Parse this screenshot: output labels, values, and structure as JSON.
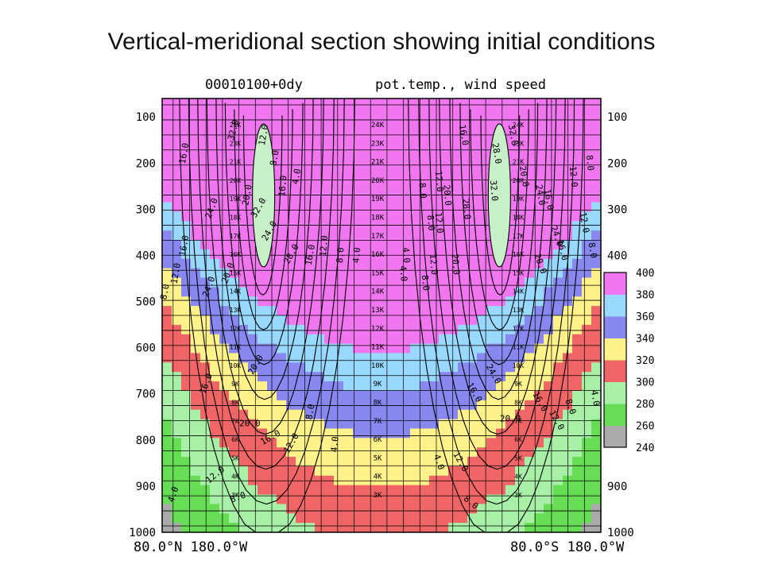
{
  "slide": {
    "title": "Vertical-meridional section showing initial conditions"
  },
  "chart_data": {
    "type": "heatmap",
    "header_left": "00010100+0dy",
    "header_right": "pot.temp., wind speed",
    "pressure_axis": {
      "ticks": [
        100,
        200,
        300,
        400,
        500,
        600,
        700,
        800,
        900,
        1000
      ],
      "tick_labels": [
        "100",
        "200",
        "300",
        "400",
        "500",
        "600",
        "700",
        "800",
        "900",
        "1000"
      ],
      "range": [
        60,
        1000
      ]
    },
    "x_axis": {
      "left_label": "80.0°N 180.0°W",
      "right_label": "80.0°S 180.0°W",
      "range": [
        80,
        -80
      ]
    },
    "colorbar": {
      "min": 240,
      "max": 400,
      "tick_labels": [
        "400",
        "380",
        "360",
        "340",
        "320",
        "300",
        "280",
        "260",
        "240"
      ],
      "colors": [
        "#aaaaaa",
        "#66dd55",
        "#a8f0a8",
        "#f06666",
        "#fff28a",
        "#8888f0",
        "#99d8ff",
        "#f077f0"
      ]
    },
    "theta_field": {
      "levels": [
        240,
        260,
        280,
        300,
        320,
        340,
        360,
        380,
        400
      ],
      "surface_pole": 240,
      "surface_equator": 305,
      "lapse": 150
    },
    "jets": [
      {
        "lat": 43,
        "p": 230,
        "max": 32
      },
      {
        "lat": -43,
        "p": 230,
        "max": 32
      }
    ],
    "wind_contour_levels": [
      4,
      8,
      12,
      16,
      20,
      24,
      28,
      32
    ],
    "wind_labels": [
      {
        "t": "32.0",
        "lat": 53,
        "p": 130,
        "r": -75
      },
      {
        "t": "16.0",
        "lat": 71,
        "p": 180,
        "r": -80
      },
      {
        "t": "12.0",
        "lat": 42,
        "p": 140,
        "r": -80
      },
      {
        "t": "8.0",
        "lat": 38,
        "p": 190,
        "r": -80
      },
      {
        "t": "4.0",
        "lat": 30,
        "p": 230,
        "r": -80
      },
      {
        "t": "20.0",
        "lat": 48,
        "p": 270,
        "r": -80
      },
      {
        "t": "16.0",
        "lat": 35,
        "p": 250,
        "r": -85
      },
      {
        "t": "24.0",
        "lat": 61,
        "p": 300,
        "r": -70
      },
      {
        "t": "32.0",
        "lat": 44,
        "p": 300,
        "r": -60
      },
      {
        "t": "24.0",
        "lat": 40,
        "p": 350,
        "r": -60
      },
      {
        "t": "28.0",
        "lat": 32,
        "p": 400,
        "r": -60
      },
      {
        "t": "16.0",
        "lat": 25,
        "p": 400,
        "r": -80
      },
      {
        "t": "12.0",
        "lat": 20,
        "p": 380,
        "r": -85
      },
      {
        "t": "8.0",
        "lat": 14,
        "p": 400,
        "r": -85
      },
      {
        "t": "4.0",
        "lat": 8,
        "p": 400,
        "r": -85
      },
      {
        "t": "20.0",
        "lat": 55,
        "p": 440,
        "r": -70
      },
      {
        "t": "24.0",
        "lat": 62,
        "p": 470,
        "r": -70
      },
      {
        "t": "16.0",
        "lat": 71,
        "p": 380,
        "r": -80
      },
      {
        "t": "12.0",
        "lat": 74,
        "p": 440,
        "r": -80
      },
      {
        "t": "8.0",
        "lat": 78,
        "p": 480,
        "r": -80
      },
      {
        "t": "20.0",
        "lat": 45,
        "p": 640,
        "r": -60
      },
      {
        "t": "16.0",
        "lat": 63,
        "p": 680,
        "r": -70
      },
      {
        "t": "20.0",
        "lat": 48,
        "p": 770,
        "r": 0
      },
      {
        "t": "16.0",
        "lat": 40,
        "p": 800,
        "r": -30
      },
      {
        "t": "12.0",
        "lat": 32,
        "p": 810,
        "r": -60
      },
      {
        "t": "8.0",
        "lat": 25,
        "p": 740,
        "r": -80
      },
      {
        "t": "4.0",
        "lat": 16,
        "p": 810,
        "r": -85
      },
      {
        "t": "12.0",
        "lat": 60,
        "p": 880,
        "r": -40
      },
      {
        "t": "8.0",
        "lat": 52,
        "p": 930,
        "r": -20
      },
      {
        "t": "4.0",
        "lat": 75,
        "p": 920,
        "r": -70
      },
      {
        "t": "4.0",
        "lat": -8,
        "p": 400,
        "r": 85
      },
      {
        "t": "8.0",
        "lat": -14,
        "p": 260,
        "r": 85
      },
      {
        "t": "12.0",
        "lat": -20,
        "p": 240,
        "r": 85
      },
      {
        "t": "20.0",
        "lat": -23,
        "p": 270,
        "r": 85
      },
      {
        "t": "28.0",
        "lat": -30,
        "p": 300,
        "r": 85
      },
      {
        "t": "32.0",
        "lat": -40,
        "p": 260,
        "r": 85
      },
      {
        "t": "28.0",
        "lat": -41,
        "p": 180,
        "r": 80
      },
      {
        "t": "32.0",
        "lat": -47,
        "p": 140,
        "r": 80
      },
      {
        "t": "16.0",
        "lat": -29,
        "p": 140,
        "r": 80
      },
      {
        "t": "12.0",
        "lat": -20,
        "p": 330,
        "r": 85
      },
      {
        "t": "8.0",
        "lat": -17,
        "p": 330,
        "r": 85
      },
      {
        "t": "20.0",
        "lat": -51,
        "p": 230,
        "r": 80
      },
      {
        "t": "24.0",
        "lat": -57,
        "p": 270,
        "r": 80
      },
      {
        "t": "16.0",
        "lat": -60,
        "p": 280,
        "r": 80
      },
      {
        "t": "12.0",
        "lat": -69,
        "p": 230,
        "r": 85
      },
      {
        "t": "8.0",
        "lat": -75,
        "p": 200,
        "r": 85
      },
      {
        "t": "12.0",
        "lat": -73,
        "p": 330,
        "r": 80
      },
      {
        "t": "24.0",
        "lat": -63,
        "p": 360,
        "r": 70
      },
      {
        "t": "16.0",
        "lat": -65,
        "p": 390,
        "r": 75
      },
      {
        "t": "8.0",
        "lat": -76,
        "p": 390,
        "r": 80
      },
      {
        "t": "20.0",
        "lat": -57,
        "p": 420,
        "r": 70
      },
      {
        "t": "12.0",
        "lat": -18,
        "p": 420,
        "r": 85
      },
      {
        "t": "8.0",
        "lat": -15,
        "p": 460,
        "r": 85
      },
      {
        "t": "20.0",
        "lat": -26,
        "p": 420,
        "r": 85
      },
      {
        "t": "4.0",
        "lat": -7,
        "p": 440,
        "r": 85
      },
      {
        "t": "24.0",
        "lat": -40,
        "p": 660,
        "r": 60
      },
      {
        "t": "16.0",
        "lat": -33,
        "p": 700,
        "r": 60
      },
      {
        "t": "20.0",
        "lat": -47,
        "p": 760,
        "r": 0
      },
      {
        "t": "16.0",
        "lat": -57,
        "p": 720,
        "r": 60
      },
      {
        "t": "12.0",
        "lat": -63,
        "p": 760,
        "r": 60
      },
      {
        "t": "8.0",
        "lat": -68,
        "p": 730,
        "r": 70
      },
      {
        "t": "4.0",
        "lat": -77,
        "p": 710,
        "r": 80
      },
      {
        "t": "12.0",
        "lat": -28,
        "p": 850,
        "r": 60
      },
      {
        "t": "8.0",
        "lat": -32,
        "p": 940,
        "r": 40
      },
      {
        "t": "4.0",
        "lat": -20,
        "p": 850,
        "r": 70
      }
    ],
    "height_labels": {
      "center": [
        "24K",
        "23K",
        "21K",
        "20K",
        "19K",
        "18K",
        "17K",
        "16K",
        "15K",
        "14K",
        "13K",
        "12K",
        "11K",
        "10K",
        "9K",
        "8K",
        "7K",
        "6K",
        "5K",
        "4K",
        "3K"
      ],
      "left": [
        "24K",
        "23K",
        "21K",
        "20K",
        "19K",
        "18K",
        "17K",
        "16K",
        "15K",
        "14K",
        "13K",
        "12K",
        "11K",
        "10K",
        "9K",
        "8K",
        "7K",
        "6K",
        "5K",
        "4K",
        "3K"
      ],
      "right": [
        "24K",
        "23K",
        "21K",
        "20K",
        "19K",
        "18K",
        "17K",
        "16K",
        "15K",
        "14K",
        "13K",
        "12K",
        "11K",
        "10K",
        "9K",
        "8K",
        "7K",
        "6K",
        "5K",
        "4K",
        "3K"
      ]
    }
  }
}
